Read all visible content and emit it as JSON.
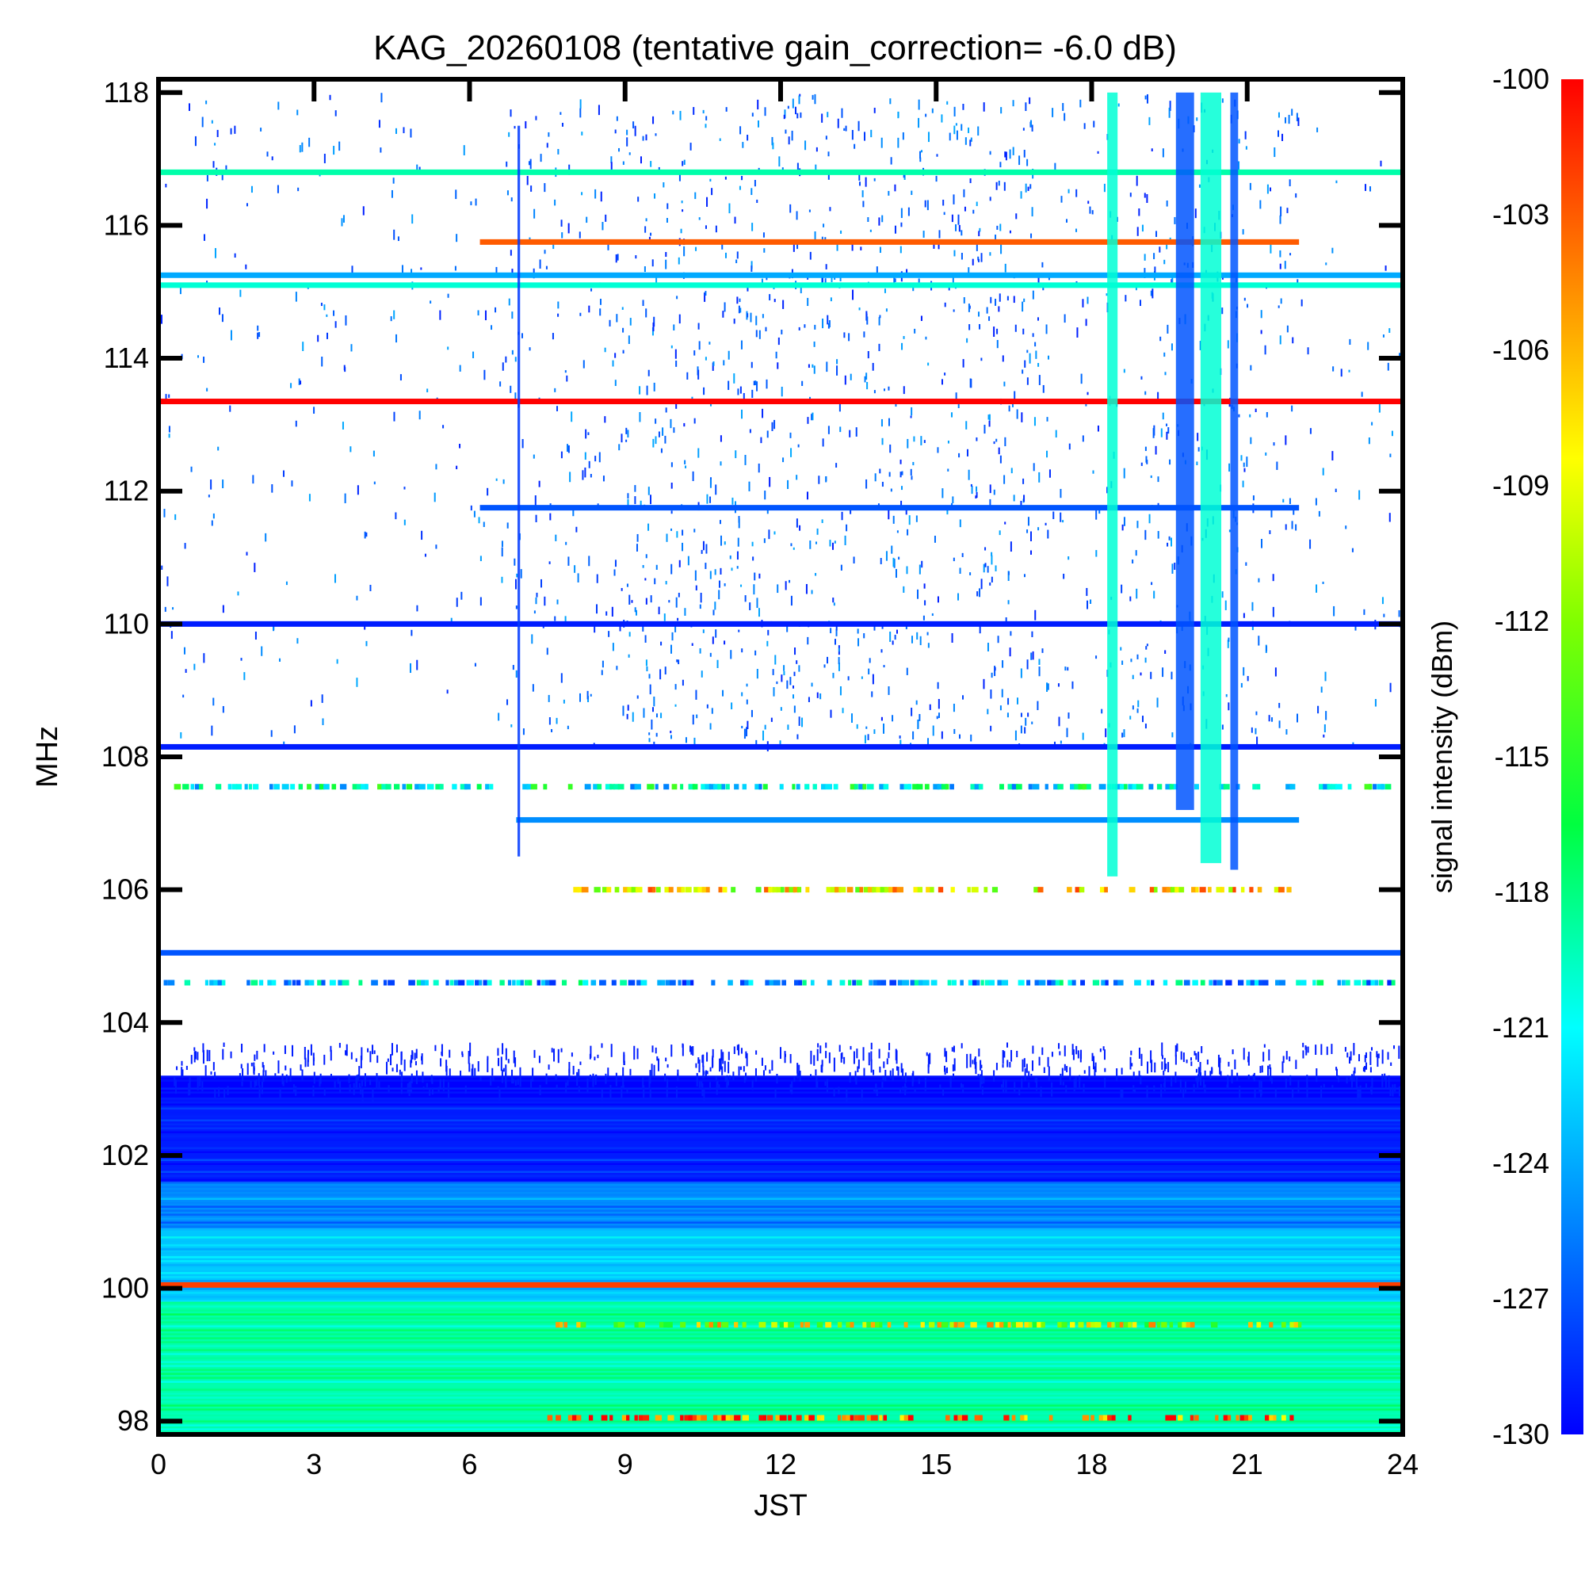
{
  "chart_data": {
    "type": "heatmap",
    "title": "KAG_20260108 (tentative gain_correction= -6.0 dB)",
    "xlabel": "JST",
    "ylabel": "MHz",
    "colorbar_label": "signal intensity (dBm)",
    "xlim": [
      0,
      24
    ],
    "ylim": [
      97.8,
      118.2
    ],
    "x_ticks": [
      "0",
      "3",
      "6",
      "9",
      "12",
      "15",
      "18",
      "21",
      "24"
    ],
    "y_ticks": [
      "98",
      "100",
      "102",
      "104",
      "106",
      "108",
      "110",
      "112",
      "114",
      "116",
      "118"
    ],
    "colorbar_range": [
      -130,
      -100
    ],
    "colorbar_ticks": [
      "-100",
      "-103",
      "-106",
      "-109",
      "-112",
      "-115",
      "-118",
      "-121",
      "-124",
      "-127",
      "-130"
    ],
    "colormap": [
      "#0000ff",
      "#0080ff",
      "#00ffff",
      "#00ff40",
      "#80ff00",
      "#ffff00",
      "#ff8000",
      "#ff0000"
    ],
    "continuous_bands": [
      {
        "freq": 116.8,
        "start": 0,
        "end": 24,
        "dbm": -119
      },
      {
        "freq": 115.75,
        "start": 6.2,
        "end": 22.0,
        "dbm": -103
      },
      {
        "freq": 115.25,
        "start": 0,
        "end": 24,
        "dbm": -124
      },
      {
        "freq": 115.1,
        "start": 0,
        "end": 24,
        "dbm": -120
      },
      {
        "freq": 113.35,
        "start": 0,
        "end": 24,
        "dbm": -100
      },
      {
        "freq": 111.75,
        "start": 6.2,
        "end": 22.0,
        "dbm": -127
      },
      {
        "freq": 110.0,
        "start": 0,
        "end": 24,
        "dbm": -129
      },
      {
        "freq": 108.15,
        "start": 0,
        "end": 24,
        "dbm": -129
      },
      {
        "freq": 107.05,
        "start": 6.9,
        "end": 22.0,
        "dbm": -125
      },
      {
        "freq": 105.05,
        "start": 0,
        "end": 24,
        "dbm": -127
      },
      {
        "freq": 100.05,
        "start": 0,
        "end": 24,
        "dbm": -102
      }
    ],
    "intermittent_bands": [
      {
        "freq": 107.55,
        "start": 0.3,
        "end": 23.8,
        "dbm": -120
      },
      {
        "freq": 106.0,
        "start": 8.0,
        "end": 21.8,
        "dbm": -108
      },
      {
        "freq": 104.6,
        "start": 0.1,
        "end": 23.8,
        "dbm": -123
      },
      {
        "freq": 99.45,
        "start": 7.5,
        "end": 22.0,
        "dbm": -110
      },
      {
        "freq": 98.05,
        "start": 7.5,
        "end": 22.0,
        "dbm": -103
      }
    ],
    "background_regions": [
      {
        "freq_from": 97.8,
        "freq_to": 99.8,
        "dbm": -119
      },
      {
        "freq_from": 99.8,
        "freq_to": 100.9,
        "dbm": -123
      },
      {
        "freq_from": 100.9,
        "freq_to": 101.6,
        "dbm": -125
      },
      {
        "freq_from": 101.6,
        "freq_to": 102.9,
        "dbm": -129
      },
      {
        "freq_from": 102.9,
        "freq_to": 103.2,
        "dbm": -130
      }
    ],
    "broadband_bursts": [
      {
        "time": 18.4,
        "width": 0.2,
        "freq_from": 106.2,
        "freq_to": 118.0,
        "dbm": -120
      },
      {
        "time": 19.8,
        "width": 0.35,
        "freq_from": 107.2,
        "freq_to": 118.0,
        "dbm": -127
      },
      {
        "time": 20.3,
        "width": 0.4,
        "freq_from": 106.4,
        "freq_to": 118.0,
        "dbm": -120
      },
      {
        "time": 20.75,
        "width": 0.15,
        "freq_from": 106.3,
        "freq_to": 118.0,
        "dbm": -127
      },
      {
        "time": 6.95,
        "width": 0.05,
        "freq_from": 106.5,
        "freq_to": 117.5,
        "dbm": -128
      }
    ]
  }
}
